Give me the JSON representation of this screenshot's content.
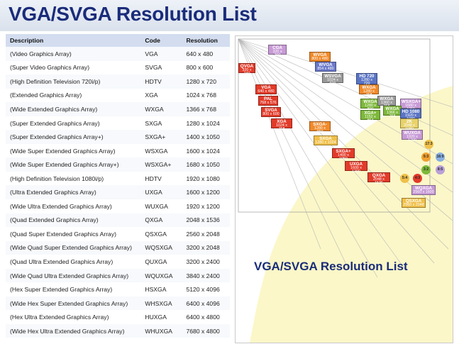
{
  "title": "VGA/SVGA Resolution List",
  "table": {
    "headers": [
      "Description",
      "Code",
      "Resolution"
    ],
    "rows": [
      [
        "(Video Graphics Array)",
        "VGA",
        "640 x 480"
      ],
      [
        "(Super Video Graphics Array)",
        "SVGA",
        "800 x 600"
      ],
      [
        "(High Definition Television 720i/p)",
        "HDTV",
        "1280 x 720"
      ],
      [
        "(Extended Graphics Array)",
        "XGA",
        "1024 x 768"
      ],
      [
        "(Wide Extended Graphics Array)",
        "WXGA",
        "1366 x 768"
      ],
      [
        "(Super Extended Graphics Array)",
        "SXGA",
        "1280 x 1024"
      ],
      [
        "(Super Extended Graphics Array+)",
        "SXGA+",
        "1400 x 1050"
      ],
      [
        "(Wide Super Extended Graphics Array)",
        "WSXGA",
        "1600 x 1024"
      ],
      [
        "(Wide Super Extended Graphics Array+)",
        "WSXGA+",
        "1680 x 1050"
      ],
      [
        "(High Definition Television 1080i/p)",
        "HDTV",
        "1920 x 1080"
      ],
      [
        "(Ultra Extended Graphics Array)",
        "UXGA",
        "1600 x 1200"
      ],
      [
        "(Wide Ultra Extended Graphics Array)",
        "WUXGA",
        "1920 x 1200"
      ],
      [
        "(Quad Extended Graphics Array)",
        "QXGA",
        "2048 x 1536"
      ],
      [
        "(Quad Super Extended Graphics Array)",
        "QSXGA",
        "2560 x 2048"
      ],
      [
        "(Wide Quad Super Extended Graphics Array)",
        "WQSXGA",
        "3200 x 2048"
      ],
      [
        "(Quad Ultra Extended Graphics Array)",
        "QUXGA",
        "3200 x 2400"
      ],
      [
        "(Wide Quad Ultra Extended Graphics Array)",
        "WQUXGA",
        "3840 x 2400"
      ],
      [
        "(Hex Super Extended Graphics Array)",
        "HSXGA",
        "5120 x 4096"
      ],
      [
        "(Wide Hex Super Extended Graphics Array)",
        "WHSXGA",
        "6400 x 4096"
      ],
      [
        "(Hex Ultra Extended Graphics Array)",
        "HUXGA",
        "6400 x 4800"
      ],
      [
        "(Wide Hex Ultra Extended Graphics Array)",
        "WHUXGA",
        "7680 x 4800"
      ]
    ]
  },
  "diagram": {
    "title": "VGA/SVGA Resolution List",
    "boxes": [
      {
        "name": "CGA",
        "res": "320 x 200",
        "color": "#c79ad6"
      },
      {
        "name": "QVGA",
        "res": "320 x 240",
        "color": "#e23b2a"
      },
      {
        "name": "WVGA",
        "res": "800 x 480",
        "color": "#f08a2a"
      },
      {
        "name": "VGA",
        "res": "640 x 480",
        "color": "#e23b2a"
      },
      {
        "name": "WVGA",
        "res": "854 x 480",
        "color": "#6a78c8"
      },
      {
        "name": "WSVGA",
        "res": "1024 x 600",
        "color": "#9a9a9a"
      },
      {
        "name": "PAL",
        "res": "768 x 576",
        "color": "#e23b2a"
      },
      {
        "name": "HD 720",
        "res": "1280 x 720",
        "color": "#5a74c4"
      },
      {
        "name": "SVGA",
        "res": "800 x 600",
        "color": "#e23b2a"
      },
      {
        "name": "WXGA",
        "res": "1280 x 768",
        "color": "#f08a2a"
      },
      {
        "name": "WXGA",
        "res": "1280 x 800",
        "color": "#7db83a"
      },
      {
        "name": "XGA",
        "res": "1024 x 768",
        "color": "#e23b2a"
      },
      {
        "name": "WXGA",
        "res": "1360 x 768",
        "color": "#9a9a9a"
      },
      {
        "name": "WSXGA+",
        "res": "1680 x 1050",
        "color": "#c79ad6"
      },
      {
        "name": "WXGA",
        "res": "1366 x 768",
        "color": "#7db83a"
      },
      {
        "name": "HD 1080",
        "res": "1920 x 1080",
        "color": "#5a74c4"
      },
      {
        "name": "XGA+",
        "res": "1152 x 864",
        "color": "#7db83a"
      },
      {
        "name": "2K",
        "res": "2048 x 1080",
        "color": "#e8d26a"
      },
      {
        "name": "SXGA-",
        "res": "1280 x 960",
        "color": "#f08a2a"
      },
      {
        "name": "WUXGA",
        "res": "1920 x 1200",
        "color": "#c79ad6"
      },
      {
        "name": "SXGA",
        "res": "1280 x 1024",
        "color": "#f0c04a"
      },
      {
        "name": "SXGA+",
        "res": "1400 x 1050",
        "color": "#e23b2a"
      },
      {
        "name": "UXGA",
        "res": "1600 x 1200",
        "color": "#e23b2a"
      },
      {
        "name": "QXGA",
        "res": "2048 x 1536",
        "color": "#e23b2a"
      },
      {
        "name": "WQXGA",
        "res": "2560 x 1600",
        "color": "#c79ad6"
      },
      {
        "name": "QSXGA",
        "res": "2560 x 2048",
        "color": "#f0c04a"
      }
    ],
    "ratios": [
      {
        "label": "17:3",
        "color": "#f0c04a"
      },
      {
        "label": "5:3",
        "color": "#f0a030"
      },
      {
        "label": "16:9",
        "color": "#8ab0e0"
      },
      {
        "label": "3:2",
        "color": "#7db83a"
      },
      {
        "label": "8:5",
        "color": "#b8a0d8"
      },
      {
        "label": "5:4",
        "color": "#f0c04a"
      },
      {
        "label": "4:3",
        "color": "#e23b2a"
      }
    ]
  }
}
